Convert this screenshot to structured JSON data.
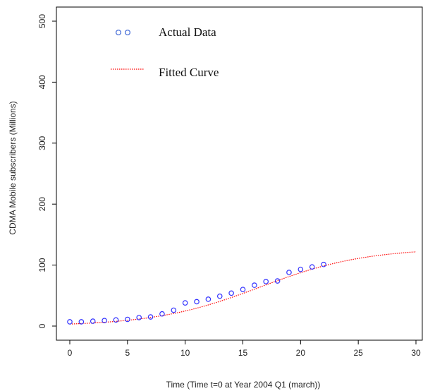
{
  "chart_data": {
    "type": "scatter",
    "xlabel": "Time (Time t=0 at Year 2004 Q1 (march))",
    "ylabel": "CDMA Mobile subscribers (Millions)",
    "xlim": [
      0,
      30
    ],
    "ylim": [
      0,
      500
    ],
    "xticks": [
      "0",
      "5",
      "10",
      "15",
      "20",
      "25",
      "30"
    ],
    "yticks": [
      "0",
      "100",
      "200",
      "300",
      "400",
      "500"
    ],
    "legend_position": "top-left",
    "grid": false,
    "series": [
      {
        "name": "Actual Data",
        "style": "points",
        "color": "#3333ff",
        "x": [
          0,
          1,
          2,
          3,
          4,
          5,
          6,
          7,
          8,
          9,
          10,
          11,
          12,
          13,
          14,
          15,
          16,
          17,
          18,
          19,
          20,
          21,
          22
        ],
        "y": [
          7,
          7,
          8,
          9,
          10,
          11,
          14,
          15,
          20,
          26,
          38,
          40,
          44,
          49,
          54,
          60,
          67,
          73,
          74,
          88,
          93,
          97,
          101
        ]
      },
      {
        "name": "Fitted Curve",
        "style": "dotted-line",
        "color": "#ff0000",
        "model": "logistic",
        "params": {
          "K": 128,
          "r": 0.22,
          "t0": 16.5
        }
      }
    ]
  }
}
